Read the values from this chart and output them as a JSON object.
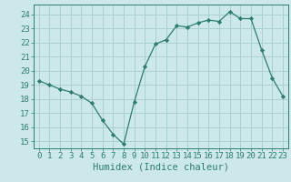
{
  "x": [
    0,
    1,
    2,
    3,
    4,
    5,
    6,
    7,
    8,
    9,
    10,
    11,
    12,
    13,
    14,
    15,
    16,
    17,
    18,
    19,
    20,
    21,
    22,
    23
  ],
  "y": [
    19.3,
    19.0,
    18.7,
    18.5,
    18.2,
    17.7,
    16.5,
    15.5,
    14.8,
    17.8,
    20.3,
    21.9,
    22.2,
    23.2,
    23.1,
    23.4,
    23.6,
    23.5,
    24.2,
    23.7,
    23.7,
    21.5,
    19.5,
    18.2
  ],
  "xlabel": "Humidex (Indice chaleur)",
  "line_color": "#2e7d6e",
  "marker_color": "#2e7d6e",
  "background_color": "#cce8e8",
  "grid_color": "#aad0d0",
  "tick_color": "#2e7d6e",
  "label_color": "#2e7d6e",
  "ylim": [
    14.5,
    24.7
  ],
  "xlim": [
    -0.5,
    23.5
  ],
  "yticks": [
    15,
    16,
    17,
    18,
    19,
    20,
    21,
    22,
    23,
    24
  ],
  "xticks": [
    0,
    1,
    2,
    3,
    4,
    5,
    6,
    7,
    8,
    9,
    10,
    11,
    12,
    13,
    14,
    15,
    16,
    17,
    18,
    19,
    20,
    21,
    22,
    23
  ],
  "tick_fontsize": 6.5,
  "xlabel_fontsize": 7.5
}
